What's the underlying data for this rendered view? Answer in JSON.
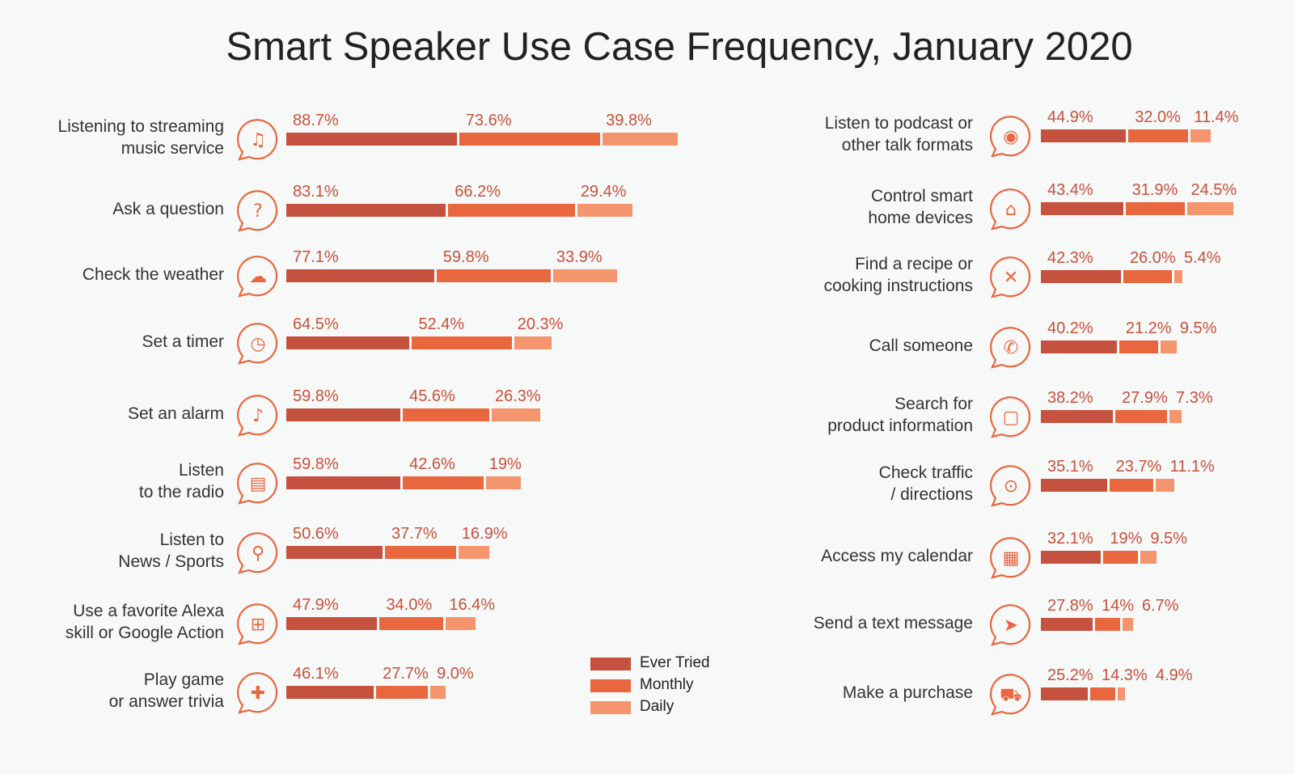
{
  "chart_data": {
    "type": "bar",
    "title": "Smart Speaker Use Case Frequency, January 2020",
    "xlabel": "",
    "ylabel": "",
    "xlim": [
      0,
      100
    ],
    "grid": false,
    "legend_position": "bottom-center",
    "series_names": [
      "Ever Tried",
      "Monthly",
      "Daily"
    ],
    "colors": [
      "#c5513f",
      "#e8673f",
      "#f4956e"
    ],
    "panels": [
      {
        "rows": [
          {
            "label": "Listening to streaming\nmusic service",
            "icon": "music-note-icon",
            "values": [
              88.7,
              73.6,
              39.8
            ],
            "labels": [
              "88.7%",
              "73.6%",
              "39.8%"
            ]
          },
          {
            "label": "Ask a question",
            "icon": "question-mark-icon",
            "values": [
              83.1,
              66.2,
              29.4
            ],
            "labels": [
              "83.1%",
              "66.2%",
              "29.4%"
            ]
          },
          {
            "label": "Check the weather",
            "icon": "cloud-icon",
            "values": [
              77.1,
              59.8,
              33.9
            ],
            "labels": [
              "77.1%",
              "59.8%",
              "33.9%"
            ]
          },
          {
            "label": "Set a timer",
            "icon": "timer-icon",
            "values": [
              64.5,
              52.4,
              20.3
            ],
            "labels": [
              "64.5%",
              "52.4%",
              "20.3%"
            ]
          },
          {
            "label": "Set an alarm",
            "icon": "alarm-bell-icon",
            "values": [
              59.8,
              45.6,
              26.3
            ],
            "labels": [
              "59.8%",
              "45.6%",
              "26.3%"
            ]
          },
          {
            "label": "Listen\nto the radio",
            "icon": "radio-icon",
            "values": [
              59.8,
              42.6,
              19
            ],
            "labels": [
              "59.8%",
              "42.6%",
              "19%"
            ]
          },
          {
            "label": "Listen to\nNews / Sports",
            "icon": "microphone-icon",
            "values": [
              50.6,
              37.7,
              16.9
            ],
            "labels": [
              "50.6%",
              "37.7%",
              "16.9%"
            ]
          },
          {
            "label": "Use a favorite Alexa\nskill or Google Action",
            "icon": "apps-grid-icon",
            "values": [
              47.9,
              34.0,
              16.4
            ],
            "labels": [
              "47.9%",
              "34.0%",
              "16.4%"
            ]
          },
          {
            "label": "Play game\nor answer trivia",
            "icon": "puzzle-icon",
            "values": [
              46.1,
              27.7,
              9.0
            ],
            "labels": [
              "46.1%",
              "27.7%",
              "9.0%"
            ]
          }
        ]
      },
      {
        "rows": [
          {
            "label": "Listen to podcast or\nother talk formats",
            "icon": "podcast-icon",
            "values": [
              44.9,
              32.0,
              11.4
            ],
            "labels": [
              "44.9%",
              "32.0%",
              "11.4%"
            ]
          },
          {
            "label": "Control smart\nhome devices",
            "icon": "smart-home-icon",
            "values": [
              43.4,
              31.9,
              24.5
            ],
            "labels": [
              "43.4%",
              "31.9%",
              "24.5%"
            ]
          },
          {
            "label": "Find a recipe or\ncooking instructions",
            "icon": "utensils-icon",
            "values": [
              42.3,
              26.0,
              5.4
            ],
            "labels": [
              "42.3%",
              "26.0%",
              "5.4%"
            ]
          },
          {
            "label": "Call someone",
            "icon": "phone-icon",
            "values": [
              40.2,
              21.2,
              9.5
            ],
            "labels": [
              "40.2%",
              "21.2%",
              "9.5%"
            ]
          },
          {
            "label": "Search for\nproduct information",
            "icon": "shopping-bag-icon",
            "values": [
              38.2,
              27.9,
              7.3
            ],
            "labels": [
              "38.2%",
              "27.9%",
              "7.3%"
            ]
          },
          {
            "label": "Check traffic\n/ directions",
            "icon": "map-pin-icon",
            "values": [
              35.1,
              23.7,
              11.1
            ],
            "labels": [
              "35.1%",
              "23.7%",
              "11.1%"
            ]
          },
          {
            "label": "Access my calendar",
            "icon": "calendar-icon",
            "values": [
              32.1,
              19,
              9.5
            ],
            "labels": [
              "32.1%",
              "19%",
              "9.5%"
            ]
          },
          {
            "label": "Send a text message",
            "icon": "paper-plane-icon",
            "values": [
              27.8,
              14,
              6.7
            ],
            "labels": [
              "27.8%",
              "14%",
              "6.7%"
            ]
          },
          {
            "label": "Make a purchase",
            "icon": "shopping-cart-icon",
            "values": [
              25.2,
              14.3,
              4.9
            ],
            "labels": [
              "25.2%",
              "14.3%",
              "4.9%"
            ]
          }
        ]
      }
    ]
  }
}
